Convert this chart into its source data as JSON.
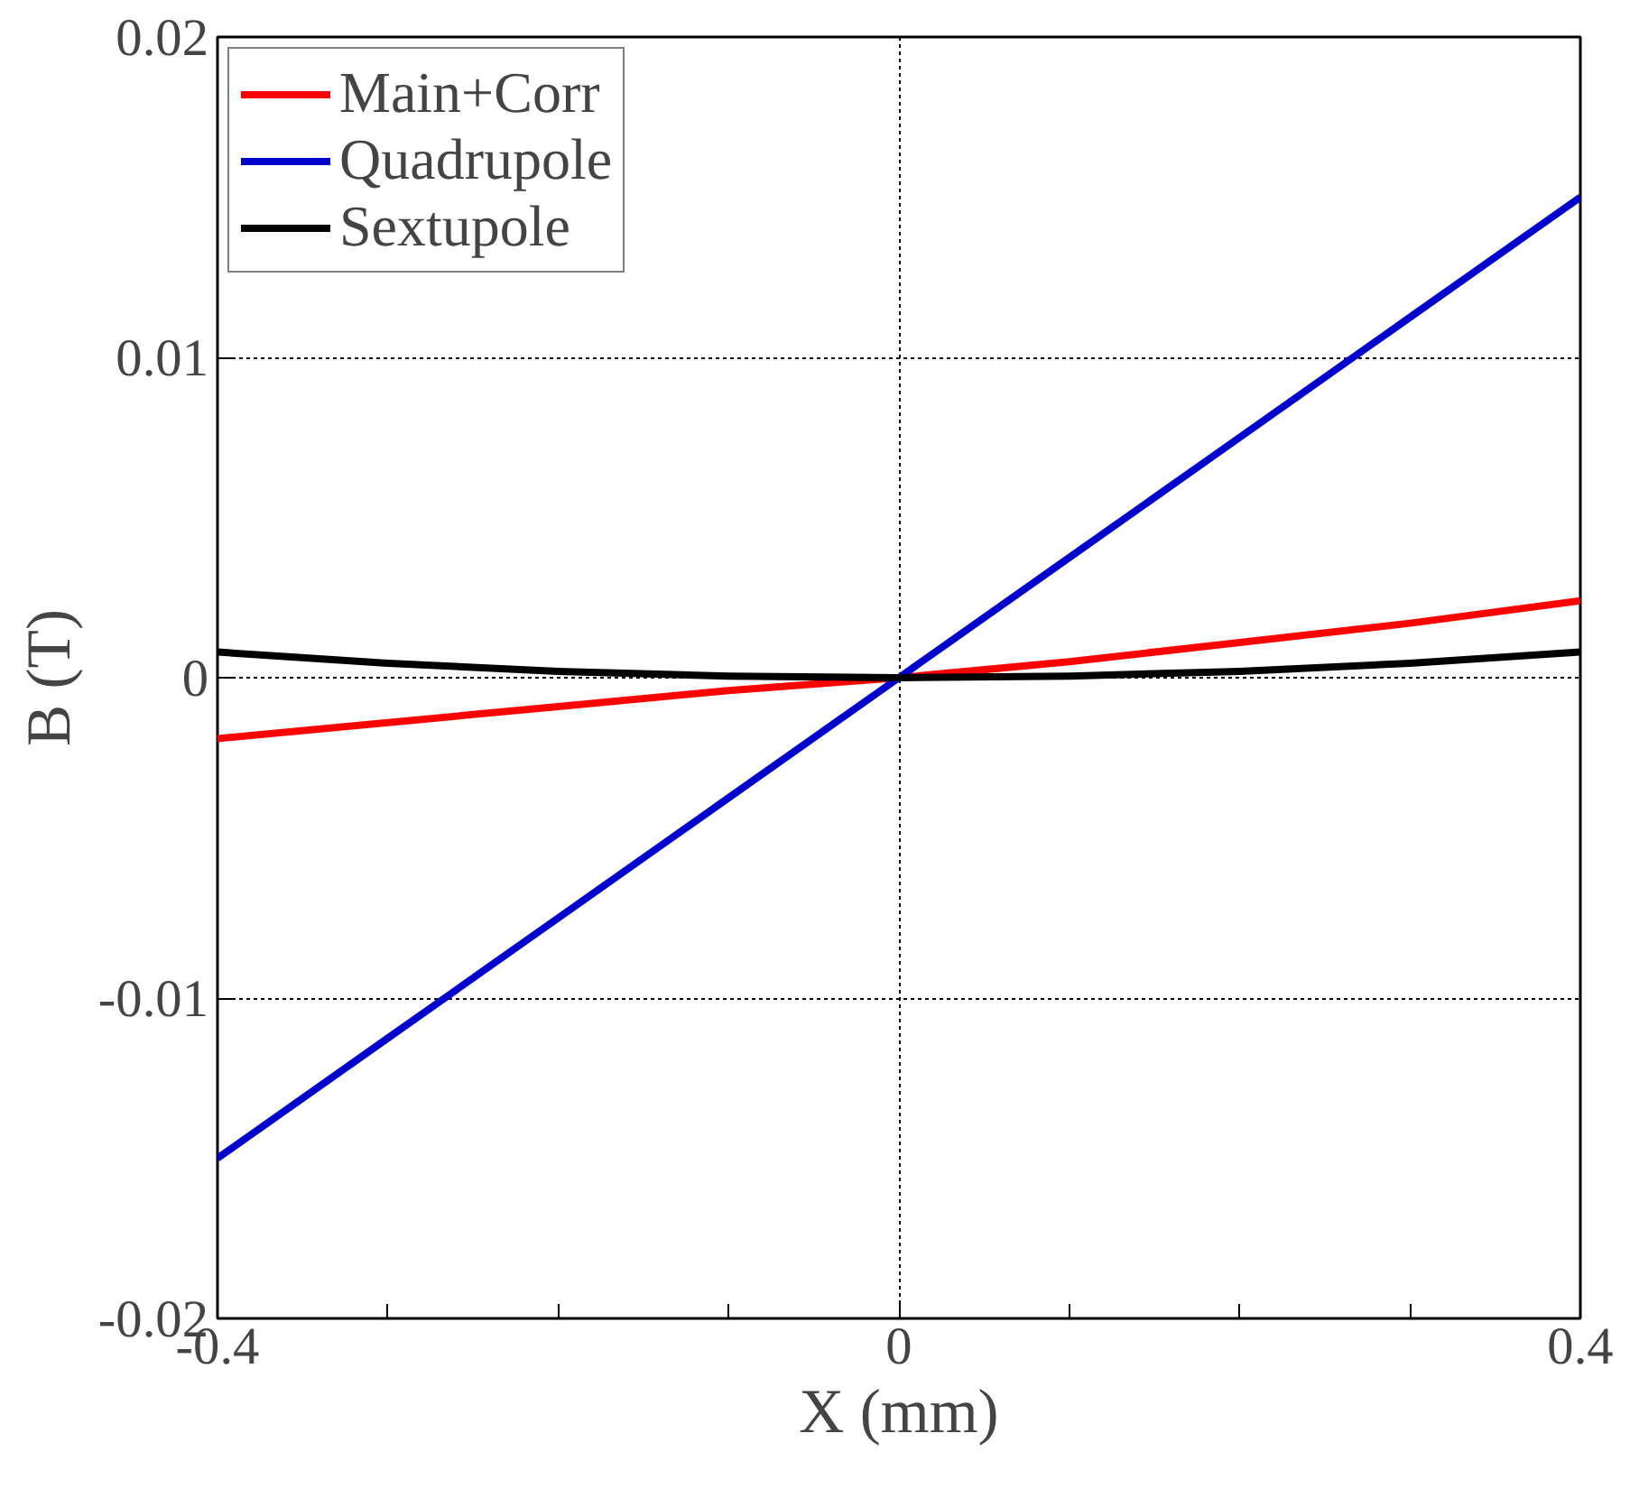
{
  "chart_data": {
    "type": "line",
    "xlabel": "X (mm)",
    "ylabel": "B (T)",
    "x": [
      -0.4,
      -0.3,
      -0.2,
      -0.1,
      0,
      0.1,
      0.2,
      0.3,
      0.4
    ],
    "series": [
      {
        "name": "Main+Corr",
        "color": "#ff0000",
        "values": [
          -0.0019,
          -0.0014,
          -0.0009,
          -0.0004,
          0,
          0.0005,
          0.0011,
          0.0017,
          0.0024
        ]
      },
      {
        "name": "Quadrupole",
        "color": "#0000cc",
        "values": [
          -0.015,
          -0.01125,
          -0.0075,
          -0.00375,
          0,
          0.00375,
          0.0075,
          0.01125,
          0.015
        ]
      },
      {
        "name": "Sextupole",
        "color": "#000000",
        "values": [
          0.0008,
          0.00045,
          0.0002,
          5e-05,
          0,
          5e-05,
          0.0002,
          0.00045,
          0.0008
        ]
      }
    ],
    "xlim": [
      -0.4,
      0.4
    ],
    "xticks": [
      -0.4,
      {
        "value": -0.3,
        "label": null
      },
      {
        "value": -0.2,
        "label": null
      },
      {
        "value": -0.1,
        "label": null
      },
      0,
      {
        "value": 0.1,
        "label": null
      },
      {
        "value": 0.2,
        "label": null
      },
      {
        "value": 0.3,
        "label": null
      },
      0.4
    ],
    "ylim": [
      -0.02,
      0.02
    ],
    "yticks": [
      -0.02,
      -0.01,
      0,
      0.01,
      0.02
    ],
    "grid": true,
    "legend": "top left",
    "line_style": "solid",
    "marker": "none"
  }
}
